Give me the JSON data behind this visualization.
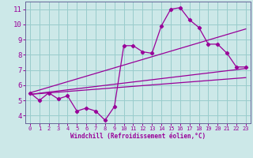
{
  "xlabel": "Windchill (Refroidissement éolien,°C)",
  "bg_color": "#cce8e8",
  "grid_color": "#99cccc",
  "line_color": "#990099",
  "xlim": [
    -0.5,
    23.5
  ],
  "ylim": [
    3.5,
    11.5
  ],
  "xticks": [
    0,
    1,
    2,
    3,
    4,
    5,
    6,
    7,
    8,
    9,
    10,
    11,
    12,
    13,
    14,
    15,
    16,
    17,
    18,
    19,
    20,
    21,
    22,
    23
  ],
  "yticks": [
    4,
    5,
    6,
    7,
    8,
    9,
    10,
    11
  ],
  "series1_x": [
    0,
    1,
    2,
    3,
    4,
    5,
    6,
    7,
    8,
    9,
    10,
    11,
    12,
    13,
    14,
    15,
    16,
    17,
    18,
    19,
    20,
    21,
    22,
    23
  ],
  "series1_y": [
    5.5,
    5.0,
    5.5,
    5.1,
    5.3,
    4.3,
    4.5,
    4.3,
    3.7,
    4.6,
    8.6,
    8.6,
    8.2,
    8.1,
    9.9,
    11.0,
    11.1,
    10.3,
    9.8,
    8.7,
    8.7,
    8.1,
    7.2,
    7.2
  ],
  "series2_x": [
    0,
    23
  ],
  "series2_y": [
    5.4,
    7.1
  ],
  "series3_x": [
    0,
    23
  ],
  "series3_y": [
    5.5,
    9.7
  ],
  "series4_x": [
    0,
    23
  ],
  "series4_y": [
    5.4,
    6.5
  ]
}
